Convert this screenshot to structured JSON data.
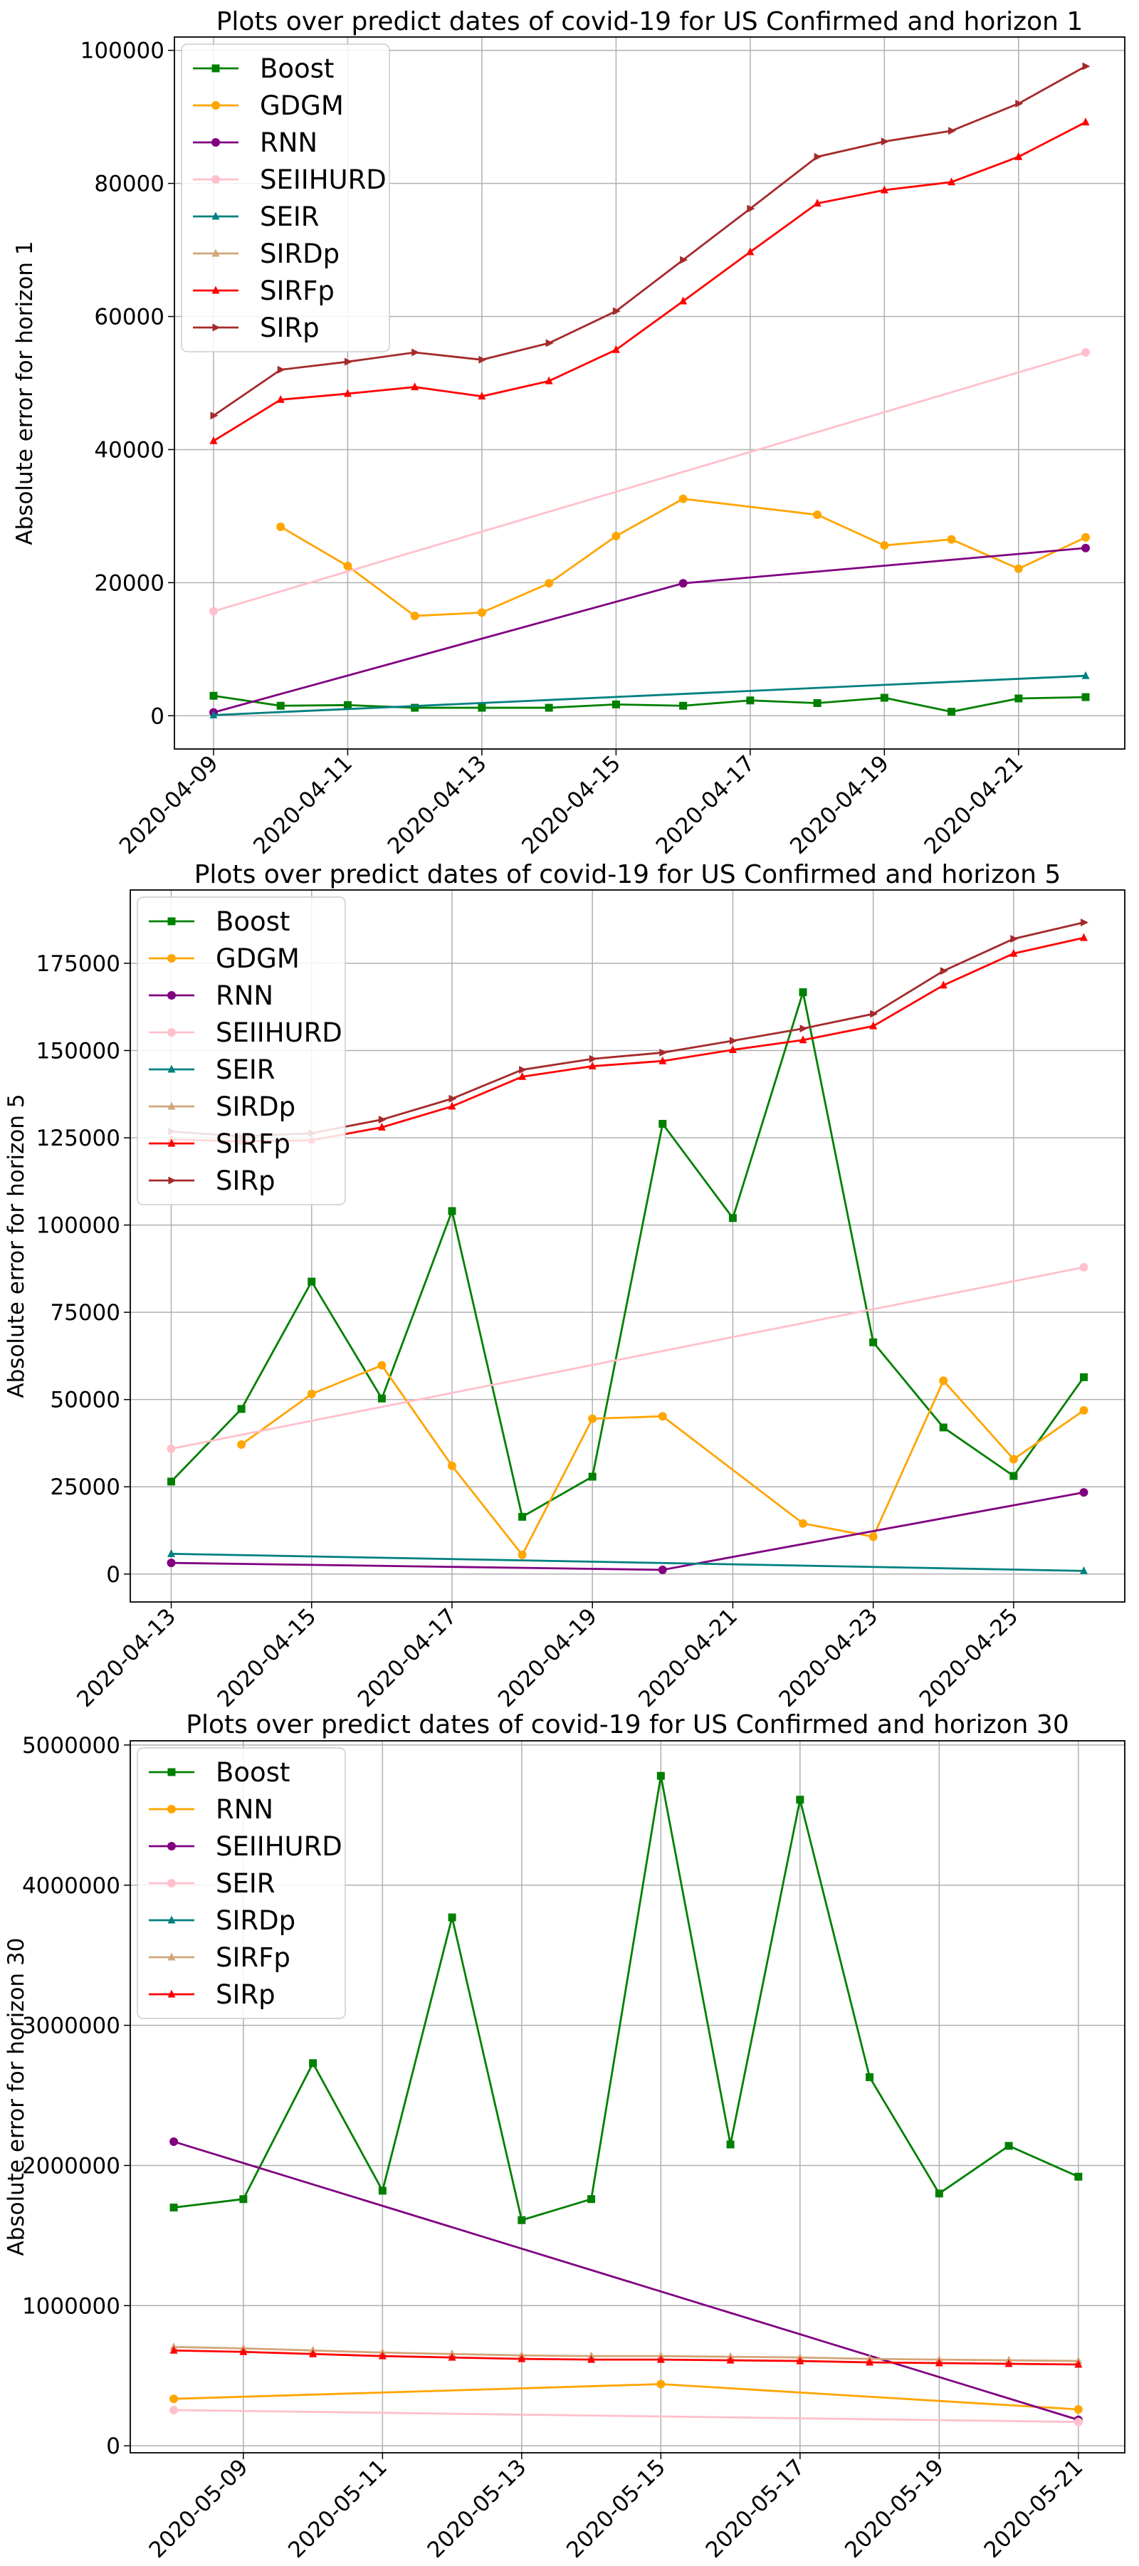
{
  "chart_data": [
    {
      "type": "line",
      "title": "Plots over predict dates of covid-19 for US Confirmed and horizon 1",
      "xlabel": "",
      "ylabel": "Absolute error for horizon 1",
      "xlim": [
        "2020-04-08T10:00",
        "2020-04-22T14:00"
      ],
      "ylim": [
        -5000,
        102000
      ],
      "xticks": [
        "2020-04-09",
        "2020-04-11",
        "2020-04-13",
        "2020-04-15",
        "2020-04-17",
        "2020-04-19",
        "2020-04-21"
      ],
      "yticks": [
        0,
        20000,
        40000,
        60000,
        80000,
        100000
      ],
      "ytick_labels": [
        "0",
        "20000",
        "40000",
        "60000",
        "80000",
        "100000"
      ],
      "grid": true,
      "legend": "upper-left",
      "series": [
        {
          "name": "Boost",
          "color": "#008000",
          "marker": "square",
          "points": [
            [
              "2020-04-09",
              3000
            ],
            [
              "2020-04-10",
              1500
            ],
            [
              "2020-04-11",
              1600
            ],
            [
              "2020-04-12",
              1200
            ],
            [
              "2020-04-13",
              1200
            ],
            [
              "2020-04-14",
              1200
            ],
            [
              "2020-04-15",
              1700
            ],
            [
              "2020-04-16",
              1500
            ],
            [
              "2020-04-17",
              2300
            ],
            [
              "2020-04-18",
              1900
            ],
            [
              "2020-04-19",
              2700
            ],
            [
              "2020-04-20",
              600
            ],
            [
              "2020-04-21",
              2600
            ],
            [
              "2020-04-22",
              2800
            ]
          ]
        },
        {
          "name": "GDGM",
          "color": "#FFA500",
          "marker": "circle",
          "points": [
            [
              "2020-04-10",
              28400
            ],
            [
              "2020-04-11",
              22500
            ],
            [
              "2020-04-12",
              15000
            ],
            [
              "2020-04-13",
              15500
            ],
            [
              "2020-04-14",
              19900
            ],
            [
              "2020-04-15",
              27000
            ],
            [
              "2020-04-16",
              32600
            ],
            [
              "2020-04-18",
              30200
            ],
            [
              "2020-04-19",
              25600
            ],
            [
              "2020-04-20",
              26500
            ],
            [
              "2020-04-21",
              22100
            ],
            [
              "2020-04-22",
              26800
            ]
          ]
        },
        {
          "name": "RNN",
          "color": "#800080",
          "marker": "circle",
          "points": [
            [
              "2020-04-09",
              500
            ],
            [
              "2020-04-16",
              19900
            ],
            [
              "2020-04-22",
              25200
            ]
          ]
        },
        {
          "name": "SEIIHURD",
          "color": "#FFC0CB",
          "marker": "circle",
          "points": [
            [
              "2020-04-09",
              15700
            ],
            [
              "2020-04-22",
              54600
            ]
          ]
        },
        {
          "name": "SEIR",
          "color": "#008080",
          "marker": "triangle",
          "points": [
            [
              "2020-04-09",
              100
            ],
            [
              "2020-04-22",
              6000
            ]
          ]
        },
        {
          "name": "SIRDp",
          "color": "#D2A679",
          "marker": "triangle",
          "points": []
        },
        {
          "name": "SIRFp",
          "color": "#FF0000",
          "marker": "triangle",
          "points": [
            [
              "2020-04-09",
              41300
            ],
            [
              "2020-04-10",
              47500
            ],
            [
              "2020-04-11",
              48400
            ],
            [
              "2020-04-12",
              49400
            ],
            [
              "2020-04-13",
              48000
            ],
            [
              "2020-04-14",
              50300
            ],
            [
              "2020-04-15",
              55000
            ],
            [
              "2020-04-16",
              62300
            ],
            [
              "2020-04-17",
              69700
            ],
            [
              "2020-04-18",
              77000
            ],
            [
              "2020-04-19",
              79000
            ],
            [
              "2020-04-20",
              80200
            ],
            [
              "2020-04-21",
              84000
            ],
            [
              "2020-04-22",
              89200
            ]
          ]
        },
        {
          "name": "SIRp",
          "color": "#A52A2A",
          "marker": "triangle-right",
          "points": [
            [
              "2020-04-09",
              45100
            ],
            [
              "2020-04-10",
              52000
            ],
            [
              "2020-04-11",
              53200
            ],
            [
              "2020-04-12",
              54600
            ],
            [
              "2020-04-13",
              53500
            ],
            [
              "2020-04-14",
              56000
            ],
            [
              "2020-04-15",
              60800
            ],
            [
              "2020-04-16",
              68500
            ],
            [
              "2020-04-17",
              76200
            ],
            [
              "2020-04-18",
              84000
            ],
            [
              "2020-04-19",
              86300
            ],
            [
              "2020-04-20",
              87900
            ],
            [
              "2020-04-21",
              92000
            ],
            [
              "2020-04-22",
              97600
            ]
          ]
        }
      ]
    },
    {
      "type": "line",
      "title": "Plots over predict dates of covid-19 for US Confirmed and horizon 5",
      "xlabel": "",
      "ylabel": "Absolute error for horizon 5",
      "xlim": [
        "2020-04-12T10:00",
        "2020-04-26T14:00"
      ],
      "ylim": [
        -8000,
        196000
      ],
      "xticks": [
        "2020-04-13",
        "2020-04-15",
        "2020-04-17",
        "2020-04-19",
        "2020-04-21",
        "2020-04-23",
        "2020-04-25"
      ],
      "yticks": [
        0,
        25000,
        50000,
        75000,
        100000,
        125000,
        150000,
        175000
      ],
      "ytick_labels": [
        "0",
        "25000",
        "50000",
        "75000",
        "100000",
        "125000",
        "150000",
        "175000"
      ],
      "grid": true,
      "legend": "upper-left",
      "series": [
        {
          "name": "Boost",
          "color": "#008000",
          "marker": "square",
          "points": [
            [
              "2020-04-13",
              26500
            ],
            [
              "2020-04-14",
              47300
            ],
            [
              "2020-04-15",
              83800
            ],
            [
              "2020-04-16",
              50300
            ],
            [
              "2020-04-17",
              104000
            ],
            [
              "2020-04-18",
              16400
            ],
            [
              "2020-04-19",
              27900
            ],
            [
              "2020-04-20",
              129000
            ],
            [
              "2020-04-21",
              102000
            ],
            [
              "2020-04-22",
              166700
            ],
            [
              "2020-04-23",
              66400
            ],
            [
              "2020-04-24",
              42000
            ],
            [
              "2020-04-25",
              28100
            ],
            [
              "2020-04-26",
              56400
            ]
          ]
        },
        {
          "name": "GDGM",
          "color": "#FFA500",
          "marker": "circle",
          "points": [
            [
              "2020-04-14",
              37100
            ],
            [
              "2020-04-15",
              51600
            ],
            [
              "2020-04-16",
              59800
            ],
            [
              "2020-04-17",
              31000
            ],
            [
              "2020-04-18",
              5500
            ],
            [
              "2020-04-19",
              44500
            ],
            [
              "2020-04-20",
              45200
            ],
            [
              "2020-04-22",
              14500
            ],
            [
              "2020-04-23",
              10700
            ],
            [
              "2020-04-24",
              55400
            ],
            [
              "2020-04-25",
              32900
            ],
            [
              "2020-04-26",
              46900
            ]
          ]
        },
        {
          "name": "RNN",
          "color": "#800080",
          "marker": "circle",
          "points": [
            [
              "2020-04-13",
              3200
            ],
            [
              "2020-04-20",
              1200
            ],
            [
              "2020-04-26",
              23400
            ]
          ]
        },
        {
          "name": "SEIIHURD",
          "color": "#FFC0CB",
          "marker": "circle",
          "points": [
            [
              "2020-04-13",
              35900
            ],
            [
              "2020-04-26",
              87900
            ]
          ]
        },
        {
          "name": "SEIR",
          "color": "#008080",
          "marker": "triangle",
          "points": [
            [
              "2020-04-13",
              5800
            ],
            [
              "2020-04-26",
              900
            ]
          ]
        },
        {
          "name": "SIRDp",
          "color": "#D2A679",
          "marker": "triangle",
          "points": []
        },
        {
          "name": "SIRFp",
          "color": "#FF0000",
          "marker": "triangle",
          "points": [
            [
              "2020-04-13",
              124500
            ],
            [
              "2020-04-14",
              124000
            ],
            [
              "2020-04-15",
              124300
            ],
            [
              "2020-04-16",
              128000
            ],
            [
              "2020-04-17",
              134000
            ],
            [
              "2020-04-18",
              142500
            ],
            [
              "2020-04-19",
              145500
            ],
            [
              "2020-04-20",
              147000
            ],
            [
              "2020-04-21",
              150200
            ],
            [
              "2020-04-22",
              153000
            ],
            [
              "2020-04-23",
              157000
            ],
            [
              "2020-04-24",
              168700
            ],
            [
              "2020-04-25",
              177800
            ],
            [
              "2020-04-26",
              182300
            ]
          ]
        },
        {
          "name": "SIRp",
          "color": "#A52A2A",
          "marker": "triangle-right",
          "points": [
            [
              "2020-04-13",
              126800
            ],
            [
              "2020-04-14",
              125400
            ],
            [
              "2020-04-15",
              126300
            ],
            [
              "2020-04-16",
              130200
            ],
            [
              "2020-04-17",
              136200
            ],
            [
              "2020-04-18",
              144500
            ],
            [
              "2020-04-19",
              147600
            ],
            [
              "2020-04-20",
              149400
            ],
            [
              "2020-04-21",
              152800
            ],
            [
              "2020-04-22",
              156300
            ],
            [
              "2020-04-23",
              160500
            ],
            [
              "2020-04-24",
              172800
            ],
            [
              "2020-04-25",
              182000
            ],
            [
              "2020-04-26",
              186700
            ]
          ]
        }
      ]
    },
    {
      "type": "line",
      "title": "Plots over predict dates of covid-19 for US Confirmed and horizon 30",
      "xlabel": "",
      "ylabel": "Absolute error for horizon 30",
      "xlim": [
        "2020-05-07T09:00",
        "2020-05-21T16:00"
      ],
      "ylim": [
        -50000,
        5030000
      ],
      "xticks": [
        "2020-05-09",
        "2020-05-11",
        "2020-05-13",
        "2020-05-15",
        "2020-05-17",
        "2020-05-19",
        "2020-05-21"
      ],
      "yticks": [
        0,
        1000000,
        2000000,
        3000000,
        4000000,
        5000000
      ],
      "ytick_labels": [
        "0",
        "1000000",
        "2000000",
        "3000000",
        "4000000",
        "5000000"
      ],
      "grid": true,
      "legend": "upper-left",
      "series": [
        {
          "name": "Boost",
          "color": "#008000",
          "marker": "square",
          "points": [
            [
              "2020-05-08",
              1700000
            ],
            [
              "2020-05-09",
              1760000
            ],
            [
              "2020-05-10",
              2730000
            ],
            [
              "2020-05-11",
              1820000
            ],
            [
              "2020-05-12",
              3770000
            ],
            [
              "2020-05-13",
              1610000
            ],
            [
              "2020-05-14",
              1760000
            ],
            [
              "2020-05-15",
              4780000
            ],
            [
              "2020-05-16",
              2150000
            ],
            [
              "2020-05-17",
              4610000
            ],
            [
              "2020-05-18",
              2630000
            ],
            [
              "2020-05-19",
              1800000
            ],
            [
              "2020-05-20",
              2140000
            ],
            [
              "2020-05-21",
              1920000
            ]
          ]
        },
        {
          "name": "RNN",
          "color": "#FFA500",
          "marker": "circle",
          "points": [
            [
              "2020-05-08",
              335000
            ],
            [
              "2020-05-15",
              440000
            ],
            [
              "2020-05-21",
              260000
            ]
          ]
        },
        {
          "name": "SEIIHURD",
          "color": "#800080",
          "marker": "circle",
          "points": [
            [
              "2020-05-08",
              2170000
            ],
            [
              "2020-05-21",
              185000
            ]
          ]
        },
        {
          "name": "SEIR",
          "color": "#FFC0CB",
          "marker": "circle",
          "points": [
            [
              "2020-05-08",
              255000
            ],
            [
              "2020-05-21",
              170000
            ]
          ]
        },
        {
          "name": "SIRDp",
          "color": "#008080",
          "marker": "triangle",
          "points": []
        },
        {
          "name": "SIRFp",
          "color": "#D2A679",
          "marker": "triangle",
          "points": [
            [
              "2020-05-08",
              705000
            ],
            [
              "2020-05-09",
              695000
            ],
            [
              "2020-05-10",
              680000
            ],
            [
              "2020-05-11",
              665000
            ],
            [
              "2020-05-12",
              655000
            ],
            [
              "2020-05-13",
              645000
            ],
            [
              "2020-05-14",
              640000
            ],
            [
              "2020-05-15",
              640000
            ],
            [
              "2020-05-16",
              635000
            ],
            [
              "2020-05-17",
              630000
            ],
            [
              "2020-05-18",
              620000
            ],
            [
              "2020-05-19",
              615000
            ],
            [
              "2020-05-20",
              610000
            ],
            [
              "2020-05-21",
              605000
            ]
          ]
        },
        {
          "name": "SIRp",
          "color": "#FF0000",
          "marker": "triangle",
          "points": [
            [
              "2020-05-08",
              680000
            ],
            [
              "2020-05-09",
              670000
            ],
            [
              "2020-05-10",
              655000
            ],
            [
              "2020-05-11",
              640000
            ],
            [
              "2020-05-12",
              630000
            ],
            [
              "2020-05-13",
              620000
            ],
            [
              "2020-05-14",
              615000
            ],
            [
              "2020-05-15",
              615000
            ],
            [
              "2020-05-16",
              610000
            ],
            [
              "2020-05-17",
              605000
            ],
            [
              "2020-05-18",
              595000
            ],
            [
              "2020-05-19",
              590000
            ],
            [
              "2020-05-20",
              585000
            ],
            [
              "2020-05-21",
              580000
            ]
          ]
        }
      ]
    }
  ]
}
